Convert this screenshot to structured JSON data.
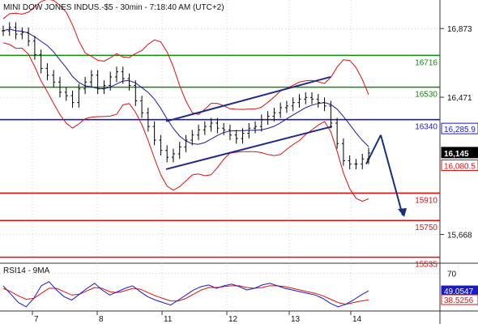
{
  "header": {
    "title": "MINI DOW JONES INDUS.-$5 - 30min - 7:18:40 AM (UTC+2)"
  },
  "colors": {
    "price": "#000000",
    "bands": "#dd1111",
    "ma": "#1a1aa0",
    "resistance": "#118811",
    "pivot": "#1a1acc",
    "support": "#dd1111",
    "channel": "#1f2a8a",
    "arrow": "#17307a",
    "rsi": "#1a1ac8",
    "rsi_ma": "#dd1111",
    "grid": "#bbbbbb",
    "last_label_bg": "#000000",
    "rsi_label_bg": "#1a1ac8"
  },
  "chart_data": [
    {
      "type": "line",
      "title": "MINI DOW JONES INDUS.-$5 - 30min - 7:18:40 AM (UTC+2)",
      "x_tick_labels": [
        "7",
        "8",
        "11",
        "12",
        "13",
        "14"
      ],
      "y_tick_labels": [
        "16,873",
        "16,471",
        "15,668"
      ],
      "y_ticks": [
        16873,
        16471,
        15668
      ],
      "ylim": [
        15500,
        17040
      ],
      "grid": "dotted",
      "series": [
        {
          "role": "price",
          "values": [
            16860,
            16880,
            16840,
            16850,
            16800,
            16720,
            16640,
            16600,
            16560,
            16500,
            16480,
            16440,
            16520,
            16560,
            16600,
            16520,
            16540,
            16590,
            16620,
            16580,
            16540,
            16450,
            16380,
            16300,
            16220,
            16160,
            16120,
            16140,
            16180,
            16220,
            16250,
            16280,
            16300,
            16320,
            16290,
            16280,
            16250,
            16230,
            16260,
            16290,
            16300,
            16340,
            16360,
            16380,
            16410,
            16420,
            16440,
            16460,
            16470,
            16460,
            16440,
            16420,
            16320,
            16200,
            16100,
            16080,
            16080,
            16110,
            16145
          ]
        }
      ],
      "levels": [
        {
          "label": "16716",
          "value": 16716,
          "kind": "resistance"
        },
        {
          "label": "16530",
          "value": 16530,
          "kind": "resistance"
        },
        {
          "label": "16340",
          "value": 16340,
          "kind": "pivot"
        },
        {
          "label": "15910",
          "value": 15910,
          "kind": "support"
        },
        {
          "label": "15750",
          "value": 15750,
          "kind": "support"
        },
        {
          "label": "15535",
          "value": 15535,
          "kind": "support"
        }
      ],
      "price_labels": [
        {
          "text": "16,285.9",
          "value": 16285.9,
          "style": "outline"
        },
        {
          "text": "16,145",
          "value": 16145,
          "style": "last"
        },
        {
          "text": "16,080.5",
          "value": 16080.5,
          "style": "outline"
        }
      ]
    },
    {
      "type": "line",
      "title": "RSI14 - 9MA",
      "x_tick_labels": [
        "7",
        "8",
        "11",
        "12",
        "13",
        "14"
      ],
      "y_tick_labels": [
        "70"
      ],
      "y_ticks": [
        70
      ],
      "ylim": [
        25,
        80
      ],
      "series": [
        {
          "role": "rsi",
          "values": [
            55,
            45,
            35,
            30,
            40,
            55,
            60,
            50,
            42,
            38,
            45,
            52,
            58,
            50,
            44,
            48,
            52,
            55,
            48,
            42,
            38,
            35,
            32,
            38,
            44,
            50,
            54,
            56,
            52,
            55,
            57,
            54,
            50,
            52,
            56,
            58,
            55,
            52,
            50,
            48,
            46,
            44,
            40,
            34,
            30,
            33,
            38,
            44,
            49
          ]
        },
        {
          "role": "rsi_ma",
          "values": [
            52,
            48,
            43,
            39,
            40,
            46,
            52,
            52,
            48,
            44,
            45,
            49,
            53,
            52,
            48,
            47,
            49,
            52,
            51,
            47,
            43,
            40,
            37,
            37,
            40,
            45,
            50,
            53,
            53,
            54,
            55,
            55,
            53,
            52,
            53,
            55,
            55,
            54,
            52,
            50,
            48,
            46,
            43,
            39,
            35,
            33,
            35,
            37,
            38
          ]
        }
      ],
      "value_labels": [
        {
          "text": "49.0547",
          "value": 49.0547,
          "style": "rsi"
        },
        {
          "text": "38.5256",
          "value": 38.5256,
          "style": "rsi_ma"
        }
      ]
    }
  ]
}
